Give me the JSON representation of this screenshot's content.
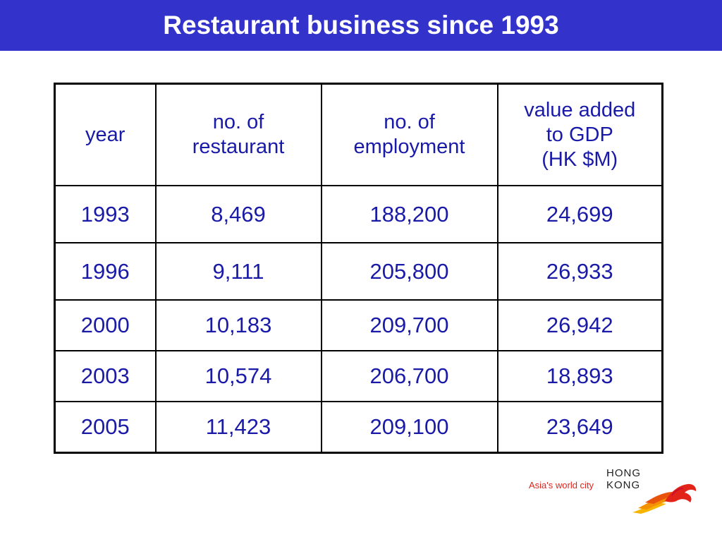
{
  "title": "Restaurant business since 1993",
  "table": {
    "headers": [
      [
        "year"
      ],
      [
        "no. of",
        "restaurant"
      ],
      [
        "no. of",
        "employment"
      ],
      [
        "value added",
        "to GDP",
        "(HK $M)"
      ]
    ],
    "rows": [
      [
        "1993",
        "8,469",
        "188,200",
        "24,699"
      ],
      [
        "1996",
        "9,111",
        "205,800",
        "26,933"
      ],
      [
        "2000",
        "10,183",
        "209,700",
        "26,942"
      ],
      [
        "2003",
        "10,574",
        "206,700",
        "18,893"
      ],
      [
        "2005",
        "11,423",
        "209,100",
        "23,649"
      ]
    ]
  },
  "logo": {
    "tagline": "Asia's world city",
    "word_1": "HONG",
    "word_2": "KONG"
  },
  "colors": {
    "title_bar": "#3333cc",
    "table_text": "#1a1aa8",
    "tagline": "#e2231a"
  }
}
